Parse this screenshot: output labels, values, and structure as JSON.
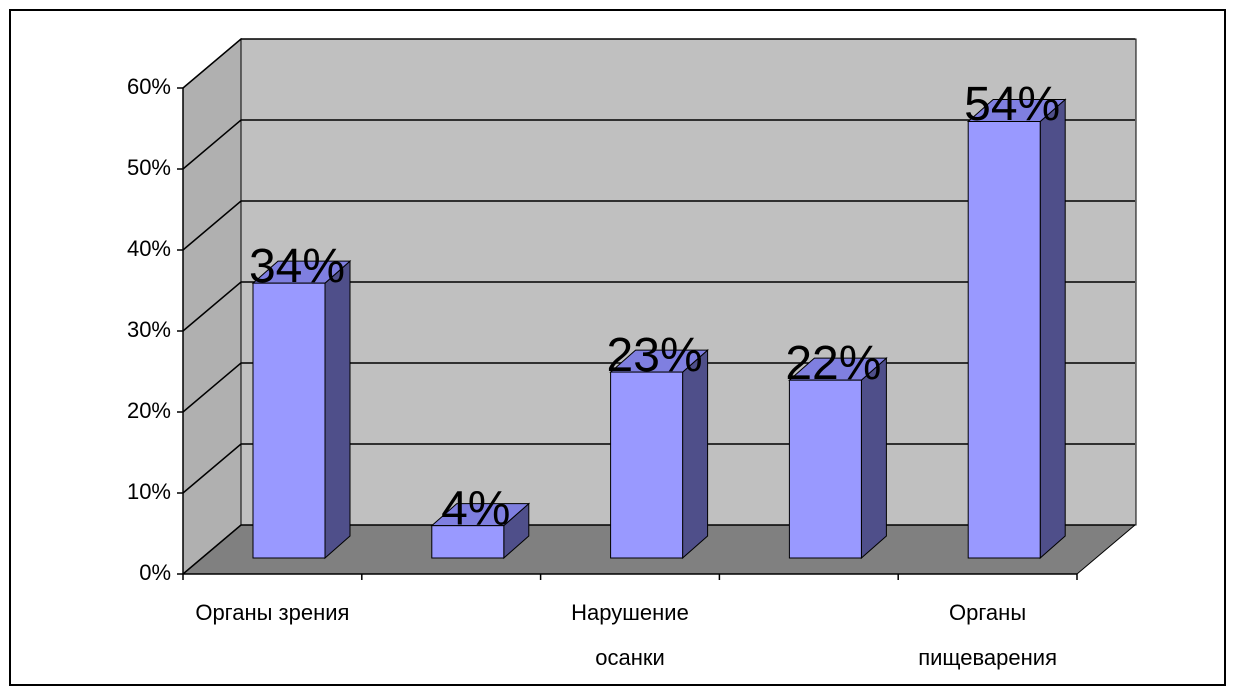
{
  "chart_data": {
    "type": "bar3d",
    "categories": [
      "Органы зрения",
      null,
      "Нарушение осанки",
      null,
      "Органы пищеварения"
    ],
    "values": [
      34,
      4,
      23,
      22,
      54
    ],
    "value_labels": [
      "34%",
      "4%",
      "23%",
      "22%",
      "54%"
    ],
    "color": "#9999ff",
    "ylim": [
      0,
      60
    ],
    "yticks": [
      {
        "value": 0,
        "label": "0%"
      },
      {
        "value": 10,
        "label": "10%"
      },
      {
        "value": 20,
        "label": "20%"
      },
      {
        "value": 30,
        "label": "30%"
      },
      {
        "value": 40,
        "label": "40%"
      },
      {
        "value": 50,
        "label": "50%"
      },
      {
        "value": 60,
        "label": "60%"
      }
    ],
    "grid": true
  }
}
